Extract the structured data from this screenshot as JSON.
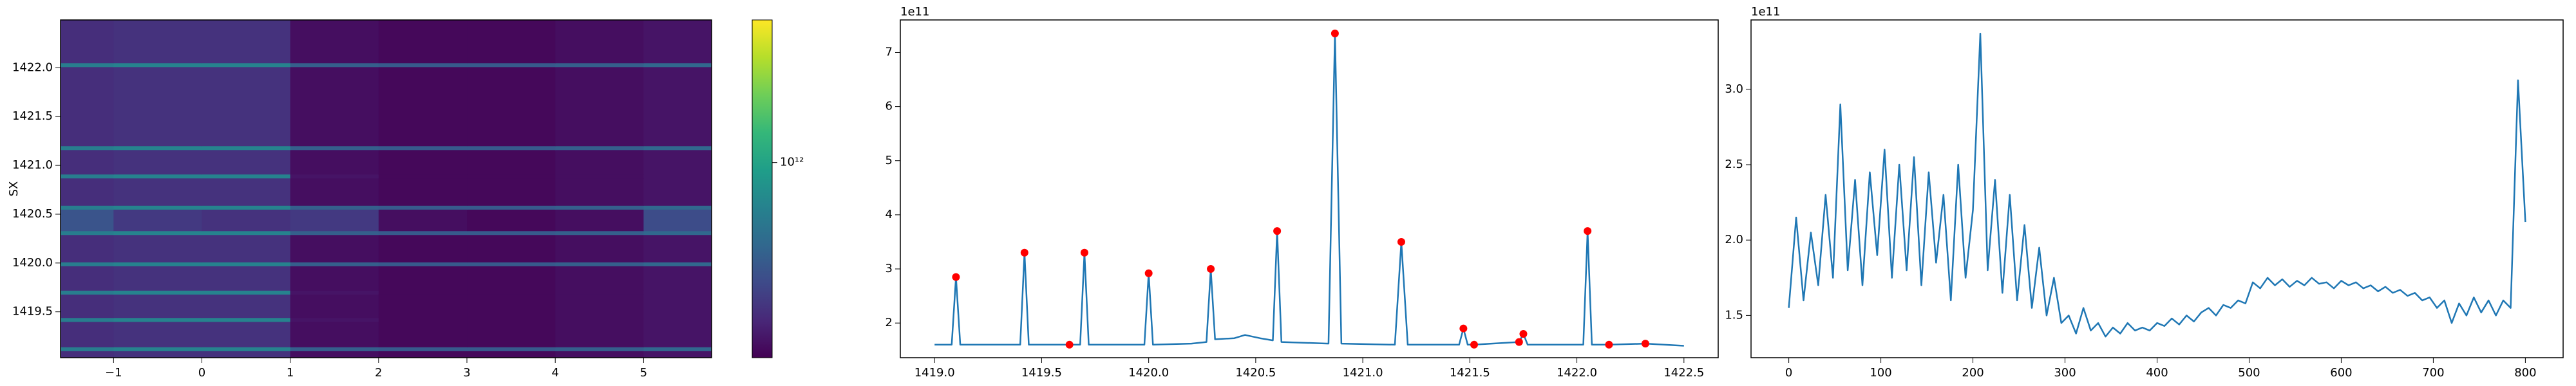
{
  "chart_data": [
    {
      "type": "heatmap",
      "ylabel": "SX",
      "x_edges": [
        -1.6,
        -1,
        0,
        1,
        2,
        3,
        4,
        5,
        5.77
      ],
      "y_edges": [
        1419.03,
        1419.1,
        1419.14,
        1419.4,
        1419.44,
        1419.68,
        1419.72,
        1419.97,
        1420.01,
        1420.29,
        1420.33,
        1420.55,
        1420.59,
        1420.87,
        1420.91,
        1421.16,
        1421.2,
        1422.01,
        1422.05,
        1422.49
      ],
      "z": [
        [
          230000000000.0,
          240000000000.0,
          240000000000.0,
          170000000000.0,
          160000000000.0,
          160000000000.0,
          170000000000.0,
          180000000000.0
        ],
        [
          600000000000.0,
          650000000000.0,
          650000000000.0,
          400000000000.0,
          380000000000.0,
          380000000000.0,
          400000000000.0,
          450000000000.0
        ],
        [
          230000000000.0,
          240000000000.0,
          240000000000.0,
          170000000000.0,
          160000000000.0,
          160000000000.0,
          170000000000.0,
          180000000000.0
        ],
        [
          600000000000.0,
          650000000000.0,
          650000000000.0,
          180000000000.0,
          160000000000.0,
          160000000000.0,
          170000000000.0,
          180000000000.0
        ],
        [
          230000000000.0,
          240000000000.0,
          240000000000.0,
          170000000000.0,
          160000000000.0,
          160000000000.0,
          170000000000.0,
          180000000000.0
        ],
        [
          600000000000.0,
          650000000000.0,
          650000000000.0,
          180000000000.0,
          160000000000.0,
          160000000000.0,
          170000000000.0,
          180000000000.0
        ],
        [
          230000000000.0,
          240000000000.0,
          240000000000.0,
          170000000000.0,
          160000000000.0,
          160000000000.0,
          170000000000.0,
          180000000000.0
        ],
        [
          600000000000.0,
          650000000000.0,
          650000000000.0,
          400000000000.0,
          380000000000.0,
          380000000000.0,
          400000000000.0,
          450000000000.0
        ],
        [
          230000000000.0,
          240000000000.0,
          240000000000.0,
          170000000000.0,
          160000000000.0,
          160000000000.0,
          170000000000.0,
          180000000000.0
        ],
        [
          600000000000.0,
          650000000000.0,
          650000000000.0,
          400000000000.0,
          380000000000.0,
          380000000000.0,
          400000000000.0,
          450000000000.0
        ],
        [
          350000000000.0,
          260000000000.0,
          240000000000.0,
          260000000000.0,
          170000000000.0,
          160000000000.0,
          170000000000.0,
          320000000000.0
        ],
        [
          600000000000.0,
          650000000000.0,
          650000000000.0,
          400000000000.0,
          380000000000.0,
          380000000000.0,
          400000000000.0,
          450000000000.0
        ],
        [
          230000000000.0,
          240000000000.0,
          240000000000.0,
          170000000000.0,
          160000000000.0,
          160000000000.0,
          170000000000.0,
          180000000000.0
        ],
        [
          600000000000.0,
          650000000000.0,
          650000000000.0,
          180000000000.0,
          160000000000.0,
          160000000000.0,
          170000000000.0,
          180000000000.0
        ],
        [
          230000000000.0,
          240000000000.0,
          240000000000.0,
          170000000000.0,
          160000000000.0,
          160000000000.0,
          170000000000.0,
          180000000000.0
        ],
        [
          600000000000.0,
          650000000000.0,
          650000000000.0,
          400000000000.0,
          380000000000.0,
          380000000000.0,
          400000000000.0,
          450000000000.0
        ],
        [
          230000000000.0,
          240000000000.0,
          240000000000.0,
          170000000000.0,
          160000000000.0,
          160000000000.0,
          170000000000.0,
          180000000000.0
        ],
        [
          600000000000.0,
          650000000000.0,
          650000000000.0,
          400000000000.0,
          380000000000.0,
          380000000000.0,
          400000000000.0,
          450000000000.0
        ],
        [
          230000000000.0,
          240000000000.0,
          240000000000.0,
          170000000000.0,
          160000000000.0,
          160000000000.0,
          170000000000.0,
          180000000000.0
        ]
      ],
      "xlim": [
        -1.6,
        5.77
      ],
      "ylim": [
        1419.03,
        1422.49
      ],
      "xticks": [
        {
          "value": -1,
          "label": "−1"
        },
        0,
        1,
        2,
        3,
        4,
        5
      ],
      "yticks": [
        1419.5,
        {
          "value": 1420,
          "label": "1420.0"
        },
        1420.5,
        {
          "value": 1421,
          "label": "1421.0"
        },
        1421.5,
        {
          "value": 1422,
          "label": "1422.0"
        }
      ],
      "colormap": "viridis",
      "color_scale": "log",
      "clim": [
        150000000000.0,
        4000000000000.0
      ],
      "cticks": [
        {
          "value": 1000000000000.0,
          "label": "10¹²"
        }
      ]
    },
    {
      "type": "line",
      "offset_text": "1e11",
      "xlim": [
        1418.84,
        1422.66
      ],
      "ylim": [
        1.36,
        7.6
      ],
      "xticks": [
        {
          "value": 1419,
          "label": "1419.0"
        },
        1419.5,
        {
          "value": 1420,
          "label": "1420.0"
        },
        1420.5,
        {
          "value": 1421,
          "label": "1421.0"
        },
        1421.5,
        {
          "value": 1422,
          "label": "1422.0"
        },
        1422.5
      ],
      "yticks": [
        2,
        3,
        4,
        5,
        6,
        7
      ],
      "series": [
        {
          "color": "#1f77b4",
          "x": [
            1419.0,
            1419.08,
            1419.1,
            1419.12,
            1419.4,
            1419.42,
            1419.44,
            1419.63,
            1419.68,
            1419.7,
            1419.72,
            1419.98,
            1420.0,
            1420.02,
            1420.2,
            1420.27,
            1420.29,
            1420.31,
            1420.4,
            1420.45,
            1420.52,
            1420.58,
            1420.6,
            1420.62,
            1420.84,
            1420.87,
            1420.9,
            1421.15,
            1421.18,
            1421.21,
            1421.45,
            1421.47,
            1421.49,
            1421.52,
            1421.73,
            1421.75,
            1421.77,
            1422.03,
            1422.05,
            1422.07,
            1422.15,
            1422.32,
            1422.5
          ],
          "values": [
            1.6,
            1.6,
            2.85,
            1.6,
            1.6,
            3.3,
            1.6,
            1.6,
            1.6,
            3.3,
            1.6,
            1.6,
            2.92,
            1.6,
            1.62,
            1.65,
            3.0,
            1.7,
            1.72,
            1.78,
            1.72,
            1.68,
            3.7,
            1.65,
            1.62,
            7.35,
            1.62,
            1.6,
            3.5,
            1.6,
            1.6,
            1.9,
            1.6,
            1.6,
            1.65,
            1.8,
            1.6,
            1.6,
            3.7,
            1.6,
            1.6,
            1.62,
            1.58
          ]
        },
        {
          "color": "red",
          "marker": "o",
          "x": [
            1419.1,
            1419.42,
            1419.63,
            1419.7,
            1420.0,
            1420.29,
            1420.6,
            1420.87,
            1421.18,
            1421.47,
            1421.52,
            1421.73,
            1421.75,
            1422.05,
            1422.15,
            1422.32
          ],
          "values": [
            2.85,
            3.3,
            1.6,
            3.3,
            2.92,
            3.0,
            3.7,
            7.35,
            3.5,
            1.9,
            1.6,
            1.65,
            1.8,
            3.7,
            1.6,
            1.62
          ]
        }
      ]
    },
    {
      "type": "line",
      "offset_text": "1e11",
      "xlim": [
        -41,
        841
      ],
      "ylim": [
        1.22,
        3.46
      ],
      "xticks": [
        0,
        100,
        200,
        300,
        400,
        500,
        600,
        700,
        800
      ],
      "yticks": [
        1.5,
        {
          "value": 2,
          "label": "2.0"
        },
        2.5,
        {
          "value": 3,
          "label": "3.0"
        }
      ],
      "series": [
        {
          "color": "#1f77b4",
          "x": [
            0,
            8,
            16,
            24,
            32,
            40,
            48,
            56,
            64,
            72,
            80,
            88,
            96,
            104,
            112,
            120,
            128,
            136,
            144,
            152,
            160,
            168,
            176,
            184,
            192,
            200,
            208,
            216,
            224,
            232,
            240,
            248,
            256,
            264,
            272,
            280,
            288,
            296,
            304,
            312,
            320,
            328,
            336,
            344,
            352,
            360,
            368,
            376,
            384,
            392,
            400,
            408,
            416,
            424,
            432,
            440,
            448,
            456,
            464,
            472,
            480,
            488,
            496,
            504,
            512,
            520,
            528,
            536,
            544,
            552,
            560,
            568,
            576,
            584,
            592,
            600,
            608,
            616,
            624,
            632,
            640,
            648,
            656,
            664,
            672,
            680,
            688,
            696,
            704,
            712,
            720,
            728,
            736,
            744,
            752,
            760,
            768,
            776,
            784,
            792,
            800
          ],
          "values": [
            1.55,
            2.15,
            1.6,
            2.05,
            1.7,
            2.3,
            1.75,
            2.9,
            1.8,
            2.4,
            1.7,
            2.45,
            1.9,
            2.6,
            1.75,
            2.5,
            1.8,
            2.55,
            1.7,
            2.45,
            1.85,
            2.3,
            1.6,
            2.5,
            1.75,
            2.2,
            3.37,
            1.8,
            2.4,
            1.65,
            2.3,
            1.6,
            2.1,
            1.55,
            1.95,
            1.5,
            1.75,
            1.45,
            1.5,
            1.38,
            1.55,
            1.4,
            1.45,
            1.36,
            1.42,
            1.38,
            1.45,
            1.4,
            1.42,
            1.4,
            1.45,
            1.43,
            1.48,
            1.44,
            1.5,
            1.46,
            1.52,
            1.55,
            1.5,
            1.57,
            1.55,
            1.6,
            1.58,
            1.72,
            1.68,
            1.75,
            1.7,
            1.74,
            1.69,
            1.73,
            1.7,
            1.75,
            1.71,
            1.72,
            1.68,
            1.73,
            1.7,
            1.72,
            1.68,
            1.7,
            1.66,
            1.69,
            1.65,
            1.67,
            1.63,
            1.65,
            1.6,
            1.62,
            1.55,
            1.6,
            1.45,
            1.58,
            1.5,
            1.62,
            1.52,
            1.6,
            1.5,
            1.6,
            1.55,
            3.06,
            2.12
          ]
        }
      ]
    }
  ]
}
